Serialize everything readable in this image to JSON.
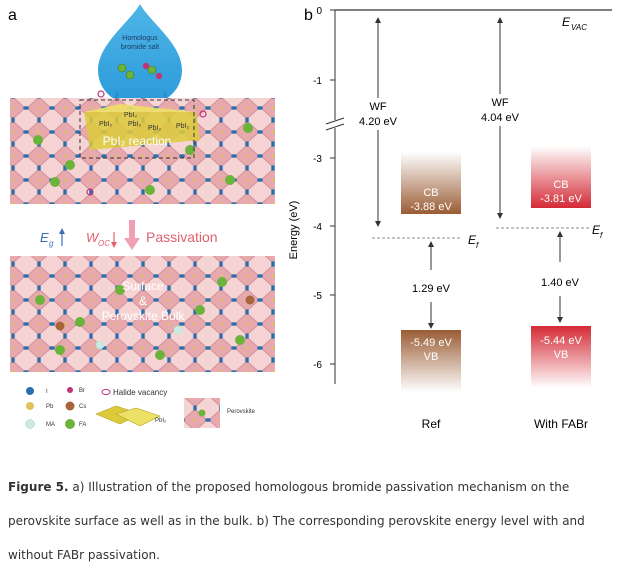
{
  "panel_a": {
    "letter": "a",
    "droplet_label_line1": "Homologus",
    "droplet_label_line2": "bromide salt",
    "reaction_label": "PbI₂ reaction",
    "pb_labels": [
      "PbI₂",
      "PbI₂",
      "PbI₂",
      "PbI₂",
      "PbI₂"
    ],
    "eg_label": "E",
    "eg_sub": "g",
    "woc_label": "W",
    "woc_sub": "OC",
    "passivation_label": "Passivation",
    "bulk_label_line1": "Surface",
    "bulk_label_line2": "&",
    "bulk_label_line3": "Perovskite Bulk",
    "legend": {
      "i": "I",
      "br": "Br",
      "pb": "Pb",
      "cs": "Cs",
      "ma": "MA",
      "fa": "FA",
      "halide_vacancy": "Halide vacancy",
      "pbi2": "PbI₂",
      "perovskite": "Perovskite"
    }
  },
  "panel_b": {
    "letter": "b",
    "axis_label": "Energy (eV)",
    "ticks": [
      "0",
      "-1",
      "-3",
      "-4",
      "-5",
      "-6"
    ],
    "evac_label": "E",
    "evac_sub": "VAC",
    "ef_label": "E",
    "ef_sub": "f",
    "ref": {
      "wf_title": "WF",
      "wf_value": "4.20 eV",
      "cb_title": "CB",
      "cb_value": "-3.88 eV",
      "gap": "1.29 eV",
      "vb_value": "-5.49 eV",
      "vb_title": "VB",
      "name": "Ref",
      "color": "#9a5c34"
    },
    "fabr": {
      "wf_title": "WF",
      "wf_value": "4.04 eV",
      "cb_title": "CB",
      "cb_value": "-3.81 eV",
      "gap": "1.40 eV",
      "vb_value": "-5.44 eV",
      "vb_title": "VB",
      "name": "With FABr",
      "color": "#d42a35"
    }
  },
  "caption": {
    "figure_label": "Figure 5.",
    "text": " a) Illustration of the proposed homologous bromide passivation mechanism on the perovskite surface as well as in the bulk. b) The corresponding perovskite energy level with and without FABr passivation."
  }
}
